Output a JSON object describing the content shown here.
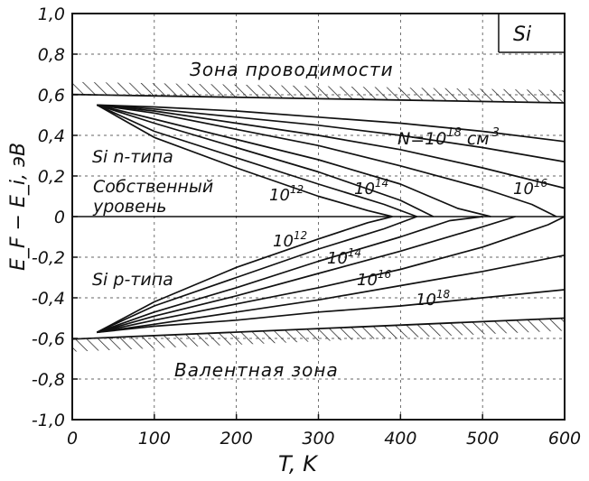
{
  "chart_data": {
    "type": "line",
    "xlabel": "T, K",
    "ylabel": "E_F − E_i, эВ",
    "xlim": [
      0,
      600
    ],
    "ylim": [
      -1.0,
      1.0
    ],
    "x_ticks": [
      "0",
      "100",
      "200",
      "300",
      "400",
      "500",
      "600"
    ],
    "y_ticks": [
      "1,0",
      "0,8",
      "0,6",
      "0,4",
      "0,2",
      "0",
      "-0,2",
      "-0,4",
      "-0,6",
      "-0,8",
      "-1,0"
    ],
    "material_label": "Si",
    "annotations": {
      "conduction_band": "Зона проводимости",
      "valence_band": "Валентная зона",
      "n_type": "Si n-типа",
      "p_type": "Si p-типа",
      "intrinsic_line1": "Собственный",
      "intrinsic_line2": "уровень",
      "n_label_prefix": "N=10",
      "n_label_exp": "18",
      "n_label_unit": "см",
      "n_label_unit_exp": "3"
    },
    "conduction_band_edge": [
      {
        "x": 20,
        "y": 0.6
      },
      {
        "x": 600,
        "y": 0.56
      }
    ],
    "valence_band_edge": [
      {
        "x": 20,
        "y": -0.6
      },
      {
        "x": 600,
        "y": -0.5
      }
    ],
    "n_type_curves": [
      {
        "label_base": "10",
        "label_exp": "12",
        "points": [
          [
            30,
            0.55
          ],
          [
            100,
            0.39
          ],
          [
            200,
            0.24
          ],
          [
            300,
            0.1
          ],
          [
            360,
            0.03
          ],
          [
            390,
            0.0
          ]
        ]
      },
      {
        "label_base": "",
        "label_exp": "",
        "points": [
          [
            30,
            0.55
          ],
          [
            100,
            0.42
          ],
          [
            200,
            0.29
          ],
          [
            300,
            0.16
          ],
          [
            380,
            0.06
          ],
          [
            420,
            0.0
          ]
        ]
      },
      {
        "label_base": "10",
        "label_exp": "14",
        "points": [
          [
            30,
            0.55
          ],
          [
            100,
            0.46
          ],
          [
            200,
            0.34
          ],
          [
            300,
            0.22
          ],
          [
            400,
            0.08
          ],
          [
            440,
            0.0
          ]
        ]
      },
      {
        "label_base": "",
        "label_exp": "",
        "points": [
          [
            30,
            0.55
          ],
          [
            100,
            0.48
          ],
          [
            200,
            0.38
          ],
          [
            300,
            0.28
          ],
          [
            400,
            0.16
          ],
          [
            470,
            0.04
          ],
          [
            510,
            0.0
          ]
        ]
      },
      {
        "label_base": "10",
        "label_exp": "16",
        "points": [
          [
            30,
            0.55
          ],
          [
            100,
            0.51
          ],
          [
            200,
            0.43
          ],
          [
            300,
            0.35
          ],
          [
            400,
            0.25
          ],
          [
            500,
            0.14
          ],
          [
            560,
            0.06
          ],
          [
            590,
            0.0
          ]
        ]
      },
      {
        "label_base": "",
        "label_exp": "",
        "points": [
          [
            30,
            0.55
          ],
          [
            100,
            0.52
          ],
          [
            200,
            0.46
          ],
          [
            300,
            0.4
          ],
          [
            400,
            0.33
          ],
          [
            500,
            0.24
          ],
          [
            600,
            0.14
          ]
        ]
      },
      {
        "label_base": "",
        "label_exp": "",
        "points": [
          [
            30,
            0.55
          ],
          [
            100,
            0.53
          ],
          [
            200,
            0.49
          ],
          [
            300,
            0.45
          ],
          [
            400,
            0.4
          ],
          [
            500,
            0.34
          ],
          [
            600,
            0.27
          ]
        ]
      },
      {
        "label_base": "",
        "label_exp": "",
        "points": [
          [
            30,
            0.55
          ],
          [
            100,
            0.54
          ],
          [
            200,
            0.52
          ],
          [
            300,
            0.49
          ],
          [
            400,
            0.46
          ],
          [
            500,
            0.42
          ],
          [
            600,
            0.37
          ]
        ]
      }
    ],
    "p_type_curves": [
      {
        "label_base": "10",
        "label_exp": "12",
        "points": [
          [
            30,
            -0.57
          ],
          [
            100,
            -0.42
          ],
          [
            200,
            -0.25
          ],
          [
            300,
            -0.11
          ],
          [
            360,
            -0.03
          ],
          [
            390,
            0.0
          ]
        ]
      },
      {
        "label_base": "",
        "label_exp": "",
        "points": [
          [
            30,
            -0.57
          ],
          [
            100,
            -0.44
          ],
          [
            200,
            -0.3
          ],
          [
            300,
            -0.16
          ],
          [
            380,
            -0.06
          ],
          [
            420,
            0.0
          ]
        ]
      },
      {
        "label_base": "10",
        "label_exp": "14",
        "points": [
          [
            30,
            -0.57
          ],
          [
            100,
            -0.47
          ],
          [
            200,
            -0.35
          ],
          [
            300,
            -0.22
          ],
          [
            400,
            -0.1
          ],
          [
            460,
            -0.02
          ],
          [
            500,
            0.0
          ]
        ]
      },
      {
        "label_base": "",
        "label_exp": "",
        "points": [
          [
            30,
            -0.57
          ],
          [
            100,
            -0.49
          ],
          [
            200,
            -0.39
          ],
          [
            300,
            -0.28
          ],
          [
            400,
            -0.17
          ],
          [
            500,
            -0.05
          ],
          [
            540,
            0.0
          ]
        ]
      },
      {
        "label_base": "10",
        "label_exp": "16",
        "points": [
          [
            30,
            -0.57
          ],
          [
            100,
            -0.51
          ],
          [
            200,
            -0.43
          ],
          [
            300,
            -0.35
          ],
          [
            400,
            -0.26
          ],
          [
            500,
            -0.15
          ],
          [
            580,
            -0.04
          ],
          [
            600,
            0.0
          ]
        ]
      },
      {
        "label_base": "",
        "label_exp": "",
        "points": [
          [
            30,
            -0.57
          ],
          [
            100,
            -0.53
          ],
          [
            200,
            -0.47
          ],
          [
            300,
            -0.41
          ],
          [
            400,
            -0.34
          ],
          [
            500,
            -0.27
          ],
          [
            600,
            -0.19
          ]
        ]
      },
      {
        "label_base": "10",
        "label_exp": "18",
        "points": [
          [
            30,
            -0.57
          ],
          [
            100,
            -0.54
          ],
          [
            200,
            -0.51
          ],
          [
            300,
            -0.47
          ],
          [
            400,
            -0.44
          ],
          [
            500,
            -0.4
          ],
          [
            600,
            -0.36
          ]
        ]
      }
    ]
  }
}
